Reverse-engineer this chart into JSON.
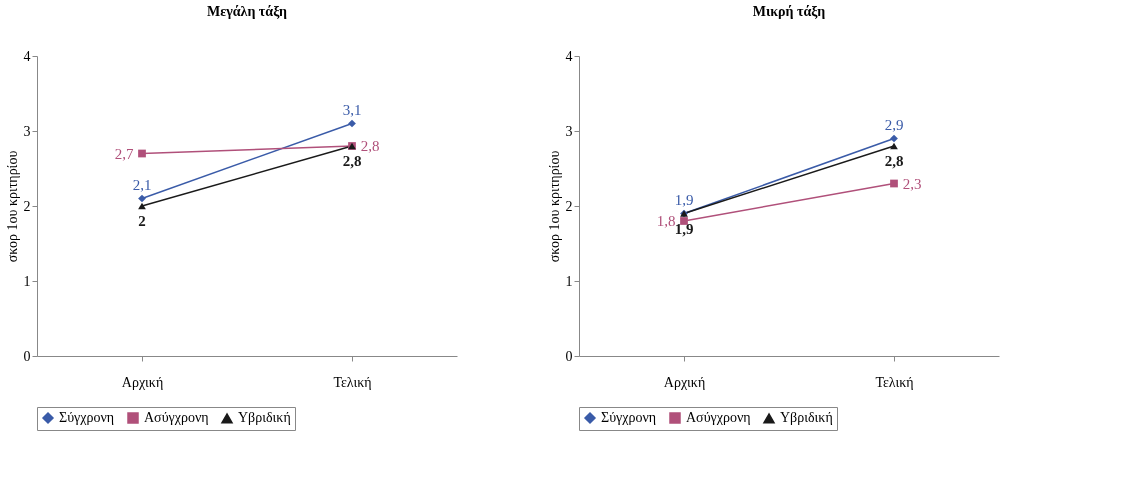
{
  "chart_data": [
    {
      "type": "line",
      "title": "Μεγάλη τάξη",
      "ylabel": "σκορ 1ου κριτηρίου",
      "categories": [
        "Αρχική",
        "Τελική"
      ],
      "ylim": [
        0,
        4
      ],
      "yticks": [
        0,
        1,
        2,
        3,
        4
      ],
      "grid": false,
      "legend": "bottom",
      "series": [
        {
          "name": "Σύγχρονη",
          "color": "#3a5ba8",
          "marker": "diamond",
          "values": [
            2.1,
            3.1
          ],
          "value_labels": [
            "2,1",
            "3,1"
          ]
        },
        {
          "name": "Ασύγχρονη",
          "color": "#b0507a",
          "marker": "square",
          "values": [
            2.7,
            2.8
          ],
          "value_labels": [
            "2,7",
            "2,8"
          ]
        },
        {
          "name": "Υβριδική",
          "color": "#1a1a1a",
          "marker": "triangle",
          "values": [
            2,
            2.8
          ],
          "value_labels": [
            "2",
            "2,8"
          ]
        }
      ]
    },
    {
      "type": "line",
      "title": "Μικρή τάξη",
      "ylabel": "σκορ 1ου κριτηρίου",
      "categories": [
        "Αρχική",
        "Τελική"
      ],
      "ylim": [
        0,
        4
      ],
      "yticks": [
        0,
        1,
        2,
        3,
        4
      ],
      "grid": false,
      "legend": "bottom",
      "series": [
        {
          "name": "Σύγχρονη",
          "color": "#3a5ba8",
          "marker": "diamond",
          "values": [
            1.9,
            2.9
          ],
          "value_labels": [
            "1,9",
            "2,9"
          ]
        },
        {
          "name": "Ασύγχρονη",
          "color": "#b0507a",
          "marker": "square",
          "values": [
            1.8,
            2.3
          ],
          "value_labels": [
            "1,8",
            "2,3"
          ]
        },
        {
          "name": "Υβριδική",
          "color": "#1a1a1a",
          "marker": "triangle",
          "values": [
            1.9,
            2.8
          ],
          "value_labels": [
            "1,9",
            "2,8"
          ]
        }
      ]
    }
  ]
}
